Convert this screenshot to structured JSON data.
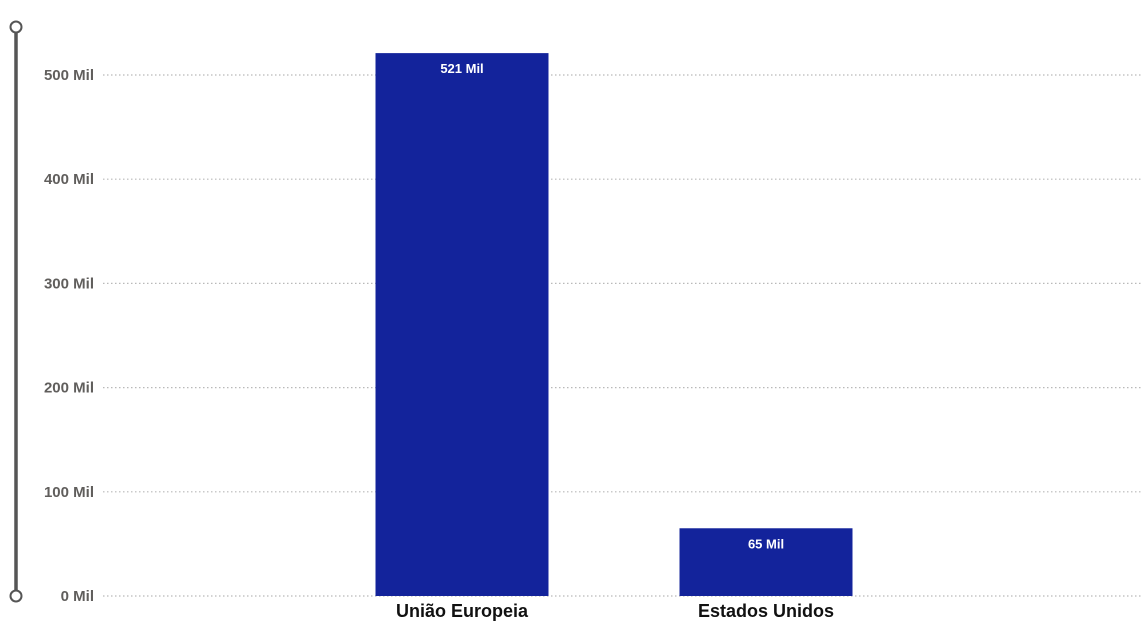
{
  "chart_data": {
    "type": "bar",
    "categories": [
      "União Europeia",
      "Estados Unidos"
    ],
    "values": [
      521000,
      65000
    ],
    "data_labels": [
      "521 Mil",
      "65 Mil"
    ],
    "y_ticks": [
      0,
      100000,
      200000,
      300000,
      400000,
      500000
    ],
    "y_tick_labels": [
      "0 Mil",
      "100 Mil",
      "200 Mil",
      "300 Mil",
      "400 Mil",
      "500 Mil"
    ],
    "ylim": [
      0,
      521000
    ],
    "grid": true,
    "legend": "none",
    "colors": {
      "bar": "#13239b",
      "grid": "#b9b9b9",
      "tick_text": "#605e5c",
      "category_text": "#111111",
      "data_label_text": "#ffffff",
      "range_slider": "#555555"
    }
  },
  "range_slider": {
    "present": true,
    "handles": [
      "top-handle",
      "bottom-handle"
    ]
  }
}
